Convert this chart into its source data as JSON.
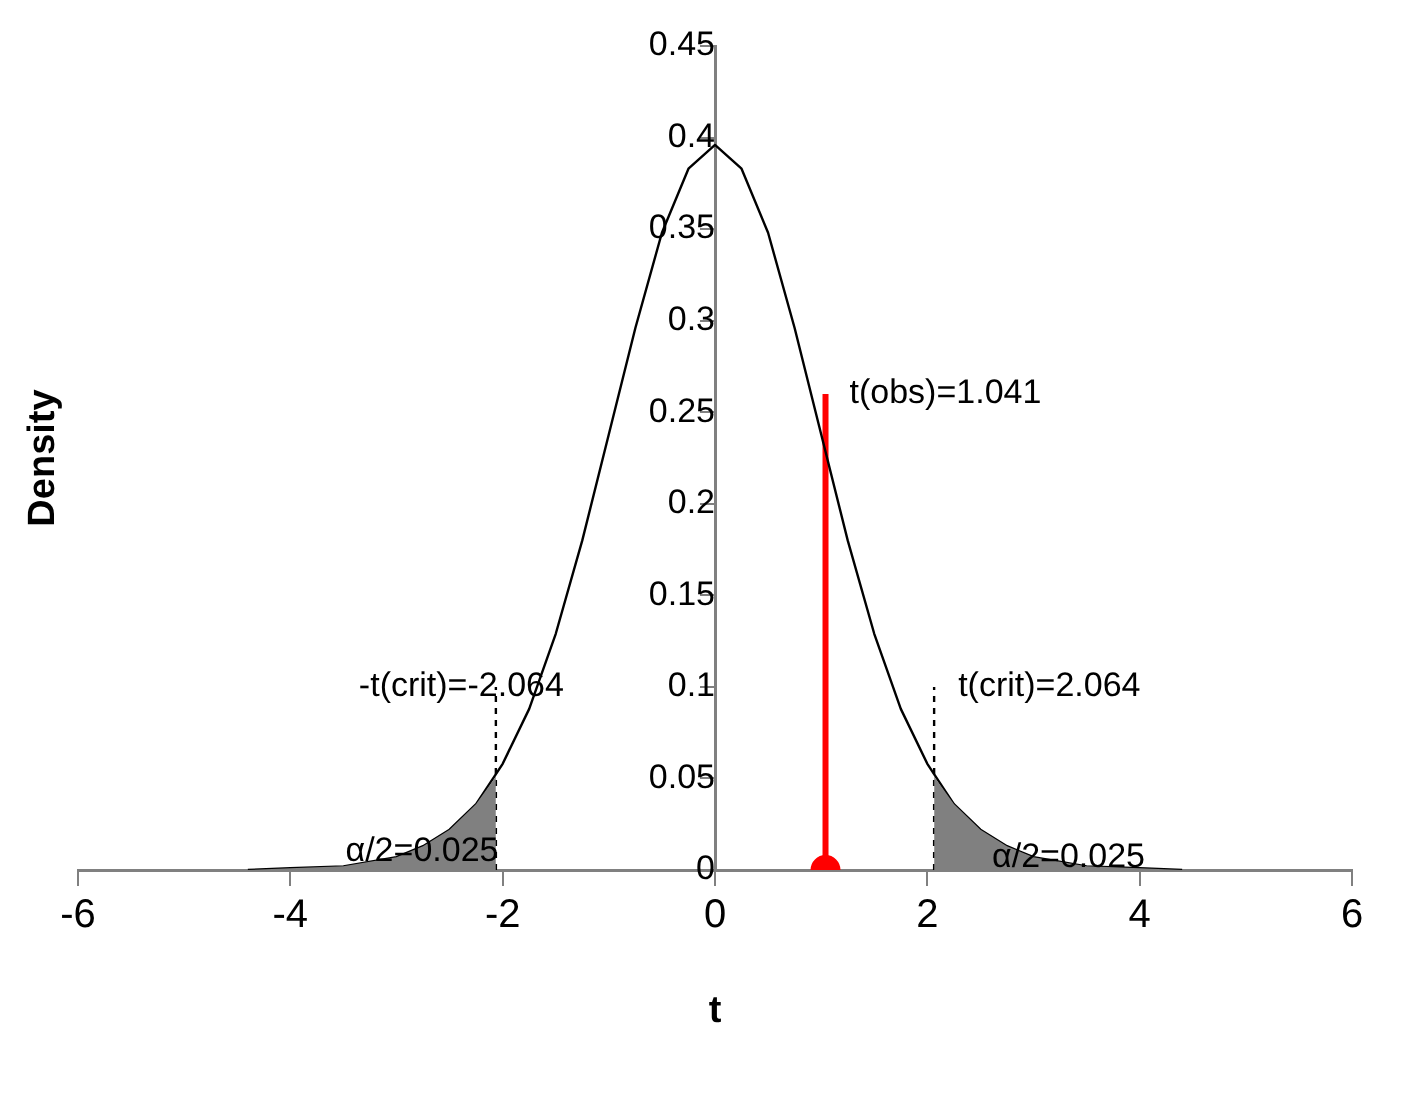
{
  "chart_data": {
    "type": "line",
    "xlabel": "t",
    "ylabel": "Density",
    "xlim": [
      -6,
      6
    ],
    "xticks": [
      -6,
      -4,
      -2,
      0,
      2,
      4,
      6
    ],
    "ylim": [
      0,
      0.45
    ],
    "yticks": [
      0,
      0.05,
      0.1,
      0.15,
      0.2,
      0.25,
      0.3,
      0.35,
      0.4,
      0.45
    ],
    "grid": false,
    "legend": false,
    "marker": "none",
    "series": [
      {
        "type": "area",
        "color": "#808080",
        "x": [
          -4.4,
          -4,
          -3.5,
          -3,
          -2.75,
          -2.5,
          -2.25,
          -2.064
        ],
        "values": [
          0,
          0.001,
          0.002,
          0.007,
          0.013,
          0.022,
          0.036,
          0.051
        ]
      },
      {
        "type": "area",
        "color": "#808080",
        "x": [
          2.064,
          2.25,
          2.5,
          2.75,
          3,
          3.5,
          4,
          4.4
        ],
        "values": [
          0.051,
          0.036,
          0.022,
          0.013,
          0.007,
          0.002,
          0.001,
          0
        ]
      },
      {
        "color": "#000000",
        "x": [
          -4.4,
          -4,
          -3.5,
          -3,
          -2.75,
          -2.5,
          -2.25,
          -2,
          -1.75,
          -1.5,
          -1.25,
          -1,
          -0.75,
          -0.5,
          -0.25,
          0,
          0.25,
          0.5,
          0.75,
          1,
          1.25,
          1.5,
          1.75,
          2,
          2.25,
          2.5,
          2.75,
          3,
          3.5,
          4,
          4.4
        ],
        "values": [
          0,
          0.001,
          0.002,
          0.007,
          0.013,
          0.022,
          0.036,
          0.058,
          0.088,
          0.129,
          0.18,
          0.238,
          0.296,
          0.348,
          0.383,
          0.396,
          0.383,
          0.348,
          0.296,
          0.238,
          0.18,
          0.129,
          0.088,
          0.058,
          0.036,
          0.022,
          0.013,
          0.007,
          0.002,
          0.001,
          0
        ]
      },
      {
        "type": "line",
        "color": "#000000",
        "line_style": "dashed",
        "x": [
          -2.064,
          -2.064
        ],
        "values": [
          0,
          0.1
        ]
      },
      {
        "type": "line",
        "color": "#000000",
        "line_style": "dashed",
        "x": [
          2.064,
          2.064
        ],
        "values": [
          0,
          0.1
        ]
      },
      {
        "type": "line",
        "color": "#ff0000",
        "x": [
          1.041,
          1.041
        ],
        "values": [
          0,
          0.26
        ]
      },
      {
        "type": "scatter",
        "color": "#ff0000",
        "marker": "circle",
        "x": [
          1.041
        ],
        "values": [
          0
        ]
      }
    ],
    "annotations": [
      {
        "text": "-t(crit)=-2.064",
        "x": -2.064,
        "y": 0.1
      },
      {
        "text": "t(crit)=2.064",
        "x": 2.064,
        "y": 0.1
      },
      {
        "text": "t(obs)=1.041",
        "x": 1.041,
        "y": 0.26
      },
      {
        "text": "α/2=0.025",
        "x": -2.76,
        "y": 0.01
      },
      {
        "text": "α/2=0.025",
        "x": 3.33,
        "y": 0.007
      }
    ]
  }
}
